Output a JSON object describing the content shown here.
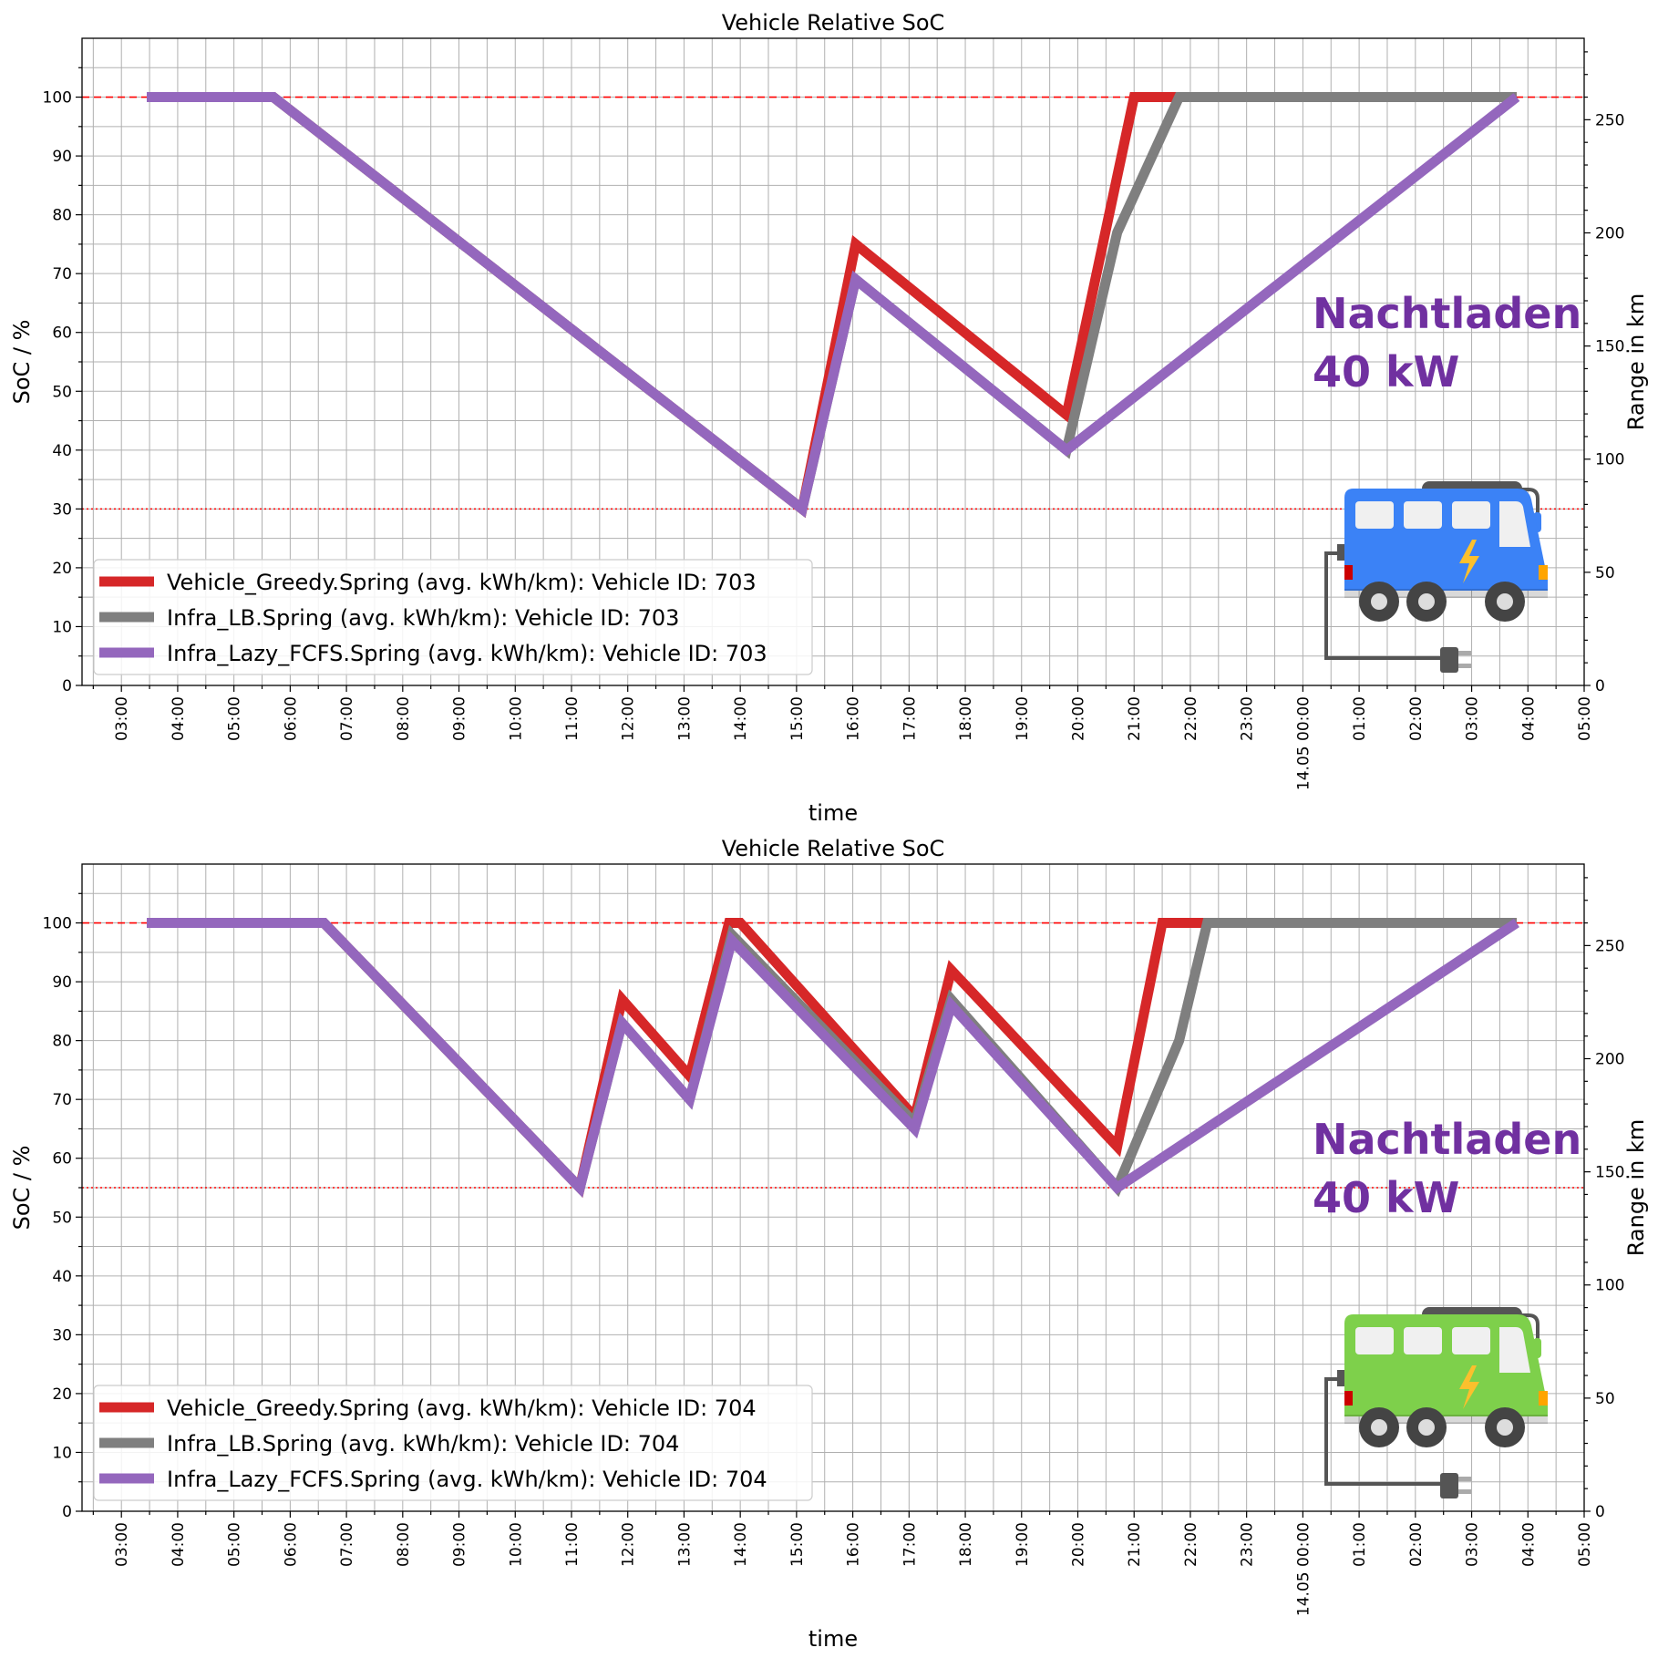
{
  "chart_data": [
    {
      "type": "line",
      "title": "Vehicle Relative SoC",
      "xlabel": "time",
      "ylabel": "SoC / %",
      "y2label": "Range in km",
      "xlim_hours": [
        2.3,
        29.0
      ],
      "ylim": [
        0,
        110
      ],
      "y2lim": [
        0,
        286
      ],
      "x_tick_labels": [
        "03:00",
        "04:00",
        "05:00",
        "06:00",
        "07:00",
        "08:00",
        "09:00",
        "10:00",
        "11:00",
        "12:00",
        "13:00",
        "14:00",
        "15:00",
        "16:00",
        "17:00",
        "18:00",
        "19:00",
        "20:00",
        "21:00",
        "22:00",
        "23:00",
        "14.05 00:00",
        "01:00",
        "02:00",
        "03:00",
        "04:00",
        "05:00"
      ],
      "y_ticks": [
        0,
        10,
        20,
        30,
        40,
        50,
        60,
        70,
        80,
        90,
        100
      ],
      "y2_ticks": [
        0,
        50,
        100,
        150,
        200,
        250
      ],
      "grid": true,
      "reference_lines": [
        {
          "y": 100,
          "style": "dashed",
          "color": "#ff0000"
        },
        {
          "y": 30,
          "style": "dotted",
          "color": "#ff0000"
        }
      ],
      "legend_position": "lower-left",
      "annotation": {
        "line1": "Nachtladen",
        "line2": "40 kW"
      },
      "vehicle_color": "#3b82f6",
      "series": [
        {
          "name": "Vehicle_Greedy.Spring (avg. kWh/km): Vehicle ID: 703",
          "color": "#d62728",
          "x": [
            3.45,
            5.7,
            15.1,
            16.05,
            19.8,
            21.0,
            22.8,
            27.8
          ],
          "y": [
            100,
            100,
            30,
            75,
            46,
            100,
            100,
            100
          ]
        },
        {
          "name": "Infra_LB.Spring (avg. kWh/km): Vehicle ID: 703",
          "color": "#7f7f7f",
          "x": [
            3.45,
            5.7,
            15.1,
            16.05,
            19.8,
            20.7,
            21.8,
            27.8
          ],
          "y": [
            100,
            100,
            30,
            69,
            40,
            77,
            100,
            100
          ]
        },
        {
          "name": "Infra_Lazy_FCFS.Spring (avg. kWh/km): Vehicle ID: 703",
          "color": "#9467bd",
          "x": [
            3.45,
            5.7,
            15.1,
            16.05,
            19.8,
            27.8
          ],
          "y": [
            100,
            100,
            30,
            69,
            40,
            100
          ]
        }
      ]
    },
    {
      "type": "line",
      "title": "Vehicle Relative SoC",
      "xlabel": "time",
      "ylabel": "SoC / %",
      "y2label": "Range in km",
      "xlim_hours": [
        2.3,
        29.0
      ],
      "ylim": [
        0,
        110
      ],
      "y2lim": [
        0,
        286
      ],
      "x_tick_labels": [
        "03:00",
        "04:00",
        "05:00",
        "06:00",
        "07:00",
        "08:00",
        "09:00",
        "10:00",
        "11:00",
        "12:00",
        "13:00",
        "14:00",
        "15:00",
        "16:00",
        "17:00",
        "18:00",
        "19:00",
        "20:00",
        "21:00",
        "22:00",
        "23:00",
        "14.05 00:00",
        "01:00",
        "02:00",
        "03:00",
        "04:00",
        "05:00"
      ],
      "y_ticks": [
        0,
        10,
        20,
        30,
        40,
        50,
        60,
        70,
        80,
        90,
        100
      ],
      "y2_ticks": [
        0,
        50,
        100,
        150,
        200,
        250
      ],
      "grid": true,
      "reference_lines": [
        {
          "y": 100,
          "style": "dashed",
          "color": "#ff0000"
        },
        {
          "y": 55,
          "style": "dotted",
          "color": "#ff0000"
        }
      ],
      "legend_position": "lower-left",
      "annotation": {
        "line1": "Nachtladen",
        "line2": "40 kW"
      },
      "vehicle_color": "#7ed04b",
      "series": [
        {
          "name": "Vehicle_Greedy.Spring (avg. kWh/km): Vehicle ID: 704",
          "color": "#d62728",
          "x": [
            3.45,
            6.6,
            11.15,
            11.9,
            13.1,
            13.8,
            14.0,
            17.1,
            17.75,
            20.7,
            21.5,
            22.5,
            27.8
          ],
          "y": [
            100,
            100,
            55,
            87,
            74,
            100,
            100,
            67,
            92,
            62,
            100,
            100,
            100
          ]
        },
        {
          "name": "Infra_LB.Spring (avg. kWh/km): Vehicle ID: 704",
          "color": "#7f7f7f",
          "x": [
            3.45,
            6.6,
            11.15,
            11.9,
            13.1,
            13.85,
            17.1,
            17.75,
            20.7,
            21.8,
            22.3,
            27.8
          ],
          "y": [
            100,
            100,
            55,
            83,
            70,
            98,
            66,
            87,
            55,
            80,
            100,
            100
          ]
        },
        {
          "name": "Infra_Lazy_FCFS.Spring (avg. kWh/km): Vehicle ID: 704",
          "color": "#9467bd",
          "x": [
            3.45,
            6.6,
            11.15,
            11.9,
            13.1,
            13.85,
            17.1,
            17.75,
            20.7,
            27.8
          ],
          "y": [
            100,
            100,
            55,
            83,
            70,
            97,
            65,
            86,
            55,
            100
          ]
        }
      ]
    }
  ]
}
